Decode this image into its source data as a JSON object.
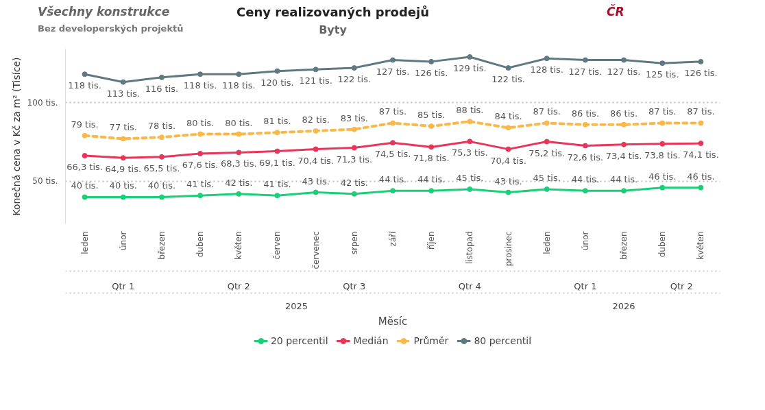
{
  "chart_data": {
    "type": "line",
    "title": "Ceny realizovaných prodejů",
    "subtitle": "Byty",
    "xlabel": "Měsíc",
    "ylabel": "Konečná cena v Kč za m² (Tisíce)",
    "categories": [
      "leden",
      "únor",
      "březen",
      "duben",
      "květen",
      "červen",
      "červenec",
      "srpen",
      "září",
      "říjen",
      "listopad",
      "prosinec",
      "leden",
      "únor",
      "březen",
      "duben",
      "květen"
    ],
    "ylim": [
      23,
      134
    ],
    "yticks": [
      {
        "value": 50,
        "label": "50 tis."
      },
      {
        "value": 100,
        "label": "100 tis."
      }
    ],
    "grid": "y",
    "legend": "bottom",
    "marker": "circle",
    "series": [
      {
        "name": "20 percentil",
        "color": "#19cf78",
        "line_style": "solid",
        "values": [
          40,
          40,
          40,
          41,
          42,
          41,
          43,
          42,
          44,
          44,
          45,
          43,
          45,
          44,
          44,
          46,
          46
        ],
        "value_labels": [
          "40 tis.",
          "40 tis.",
          "40 tis.",
          "41 tis.",
          "42 tis.",
          "41 tis.",
          "43 tis.",
          "42 tis.",
          "44 tis.",
          "44 tis.",
          "45 tis.",
          "43 tis.",
          "45 tis.",
          "44 tis.",
          "44 tis.",
          "46 tis.",
          "46 tis."
        ]
      },
      {
        "name": "Medián",
        "color": "#e8365a",
        "line_style": "solid",
        "values": [
          66.3,
          64.9,
          65.5,
          67.6,
          68.3,
          69.1,
          70.4,
          71.3,
          74.5,
          71.8,
          75.3,
          70.4,
          75.2,
          72.6,
          73.4,
          73.8,
          74.1
        ],
        "value_labels": [
          "66,3 tis.",
          "64,9 tis.",
          "65,5 tis.",
          "67,6 tis.",
          "68,3 tis.",
          "69,1 tis.",
          "70,4 tis.",
          "71,3 tis.",
          "74,5 tis.",
          "71,8 tis.",
          "75,3 tis.",
          "70,4 tis.",
          "75,2 tis.",
          "72,6 tis.",
          "73,4 tis.",
          "73,8 tis.",
          "74,1 tis."
        ]
      },
      {
        "name": "Průměr",
        "color": "#f8b84a",
        "line_style": "dashed",
        "values": [
          79,
          77,
          78,
          80,
          80,
          81,
          82,
          83,
          87,
          85,
          88,
          84,
          87,
          86,
          86,
          87,
          87
        ],
        "value_labels": [
          "79 tis.",
          "77 tis.",
          "78 tis.",
          "80 tis.",
          "80 tis.",
          "81 tis.",
          "82 tis.",
          "83 tis.",
          "87 tis.",
          "85 tis.",
          "88 tis.",
          "84 tis.",
          "87 tis.",
          "86 tis.",
          "86 tis.",
          "87 tis.",
          "87 tis."
        ]
      },
      {
        "name": "80 percentil",
        "color": "#607880",
        "line_style": "solid",
        "values": [
          118,
          113,
          116,
          118,
          118,
          120,
          121,
          122,
          127,
          126,
          129,
          122,
          128,
          127,
          127,
          125,
          126
        ],
        "value_labels": [
          "118 tis.",
          "113 tis.",
          "116 tis.",
          "118 tis.",
          "118 tis.",
          "120 tis.",
          "121 tis.",
          "122 tis.",
          "127 tis.",
          "126 tis.",
          "129 tis.",
          "122 tis.",
          "128 tis.",
          "127 tis.",
          "127 tis.",
          "125 tis.",
          "126 tis."
        ]
      }
    ],
    "annotations": [
      "Všechny konstrukce",
      "Bez developerských projektů",
      "ČR",
      "Qtr 1",
      "Qtr 2",
      "Qtr 3",
      "Qtr 4",
      "Qtr 1",
      "Qtr 2",
      "2025",
      "2026"
    ]
  }
}
